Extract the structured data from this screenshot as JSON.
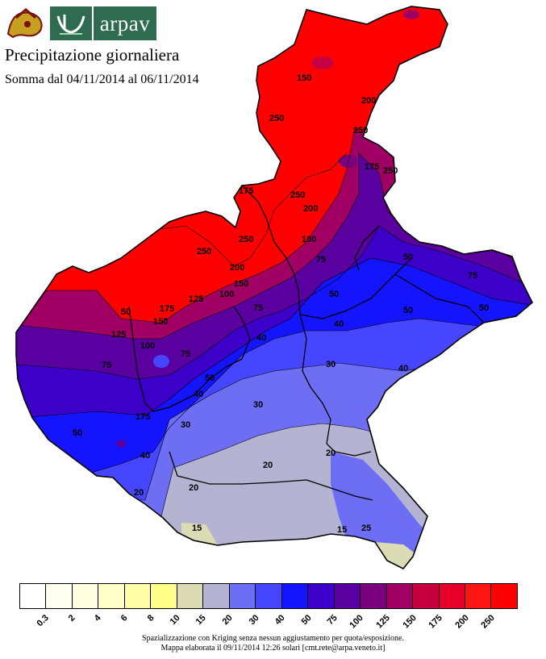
{
  "header": {
    "logo_text": "arpav",
    "title": "Precipitazione giornaliera",
    "subtitle": "Somma dal 04/11/2014 al 06/11/2014"
  },
  "map": {
    "region": "Veneto",
    "contour_labels": [
      "15",
      "20",
      "25",
      "30",
      "40",
      "50",
      "75",
      "100",
      "125",
      "150",
      "175",
      "200",
      "250"
    ]
  },
  "legend": {
    "labels": [
      "0.3",
      "2",
      "4",
      "6",
      "8",
      "10",
      "15",
      "20",
      "30",
      "40",
      "50",
      "75",
      "100",
      "125",
      "150",
      "175",
      "200",
      "250"
    ],
    "colors": [
      "#ffffff",
      "#fffff0",
      "#ffffe0",
      "#ffffc8",
      "#ffffa8",
      "#ffff88",
      "#dcdcb4",
      "#b4b4d2",
      "#6e6ef5",
      "#4646ff",
      "#1414ff",
      "#3c00c8",
      "#5a00a0",
      "#7a0080",
      "#a00064",
      "#c80040",
      "#e6002a",
      "#ff1414",
      "#ff0000"
    ]
  },
  "footnote": {
    "line1": "Spazializzazione con Kriging senza nessun aggiustamento per quota/esposizione.",
    "line2": "Mappa elaborata il 09/11/2014 12:26 solari [cmt.rete@arpa.veneto.it]"
  }
}
